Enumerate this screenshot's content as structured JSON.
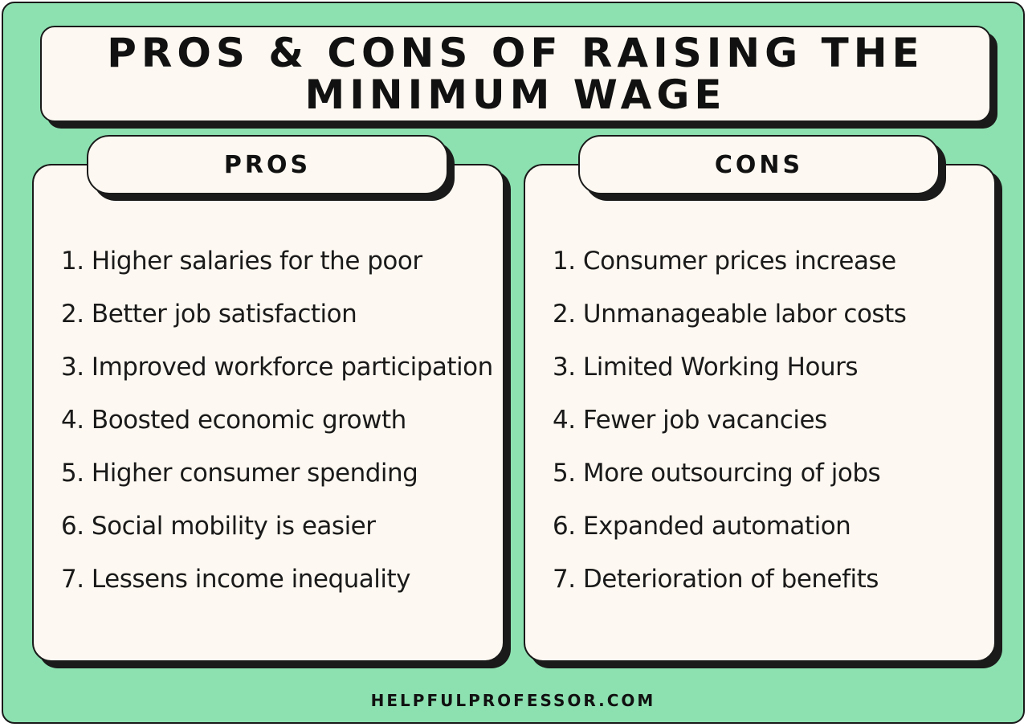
{
  "title": "PROS & CONS OF RAISING THE MINIMUM WAGE",
  "pros": {
    "heading": "PROS",
    "items": [
      "1. Higher salaries for the poor",
      "2. Better job satisfaction",
      "3. Improved workforce participation",
      "4. Boosted economic growth",
      "5. Higher consumer spending",
      "6. Social mobility is easier",
      "7. Lessens income inequality"
    ]
  },
  "cons": {
    "heading": "CONS",
    "items": [
      "1. Consumer prices increase",
      "2. Unmanageable labor costs",
      "3. Limited Working Hours",
      "4. Fewer job vacancies",
      "5. More outsourcing of jobs",
      "6. Expanded automation",
      "7. Deterioration of benefits"
    ]
  },
  "footer": "HELPFULPROFESSOR.COM",
  "colors": {
    "background": "#8de1b1",
    "card": "#fdf8f1",
    "ink": "#1a1a1a"
  }
}
